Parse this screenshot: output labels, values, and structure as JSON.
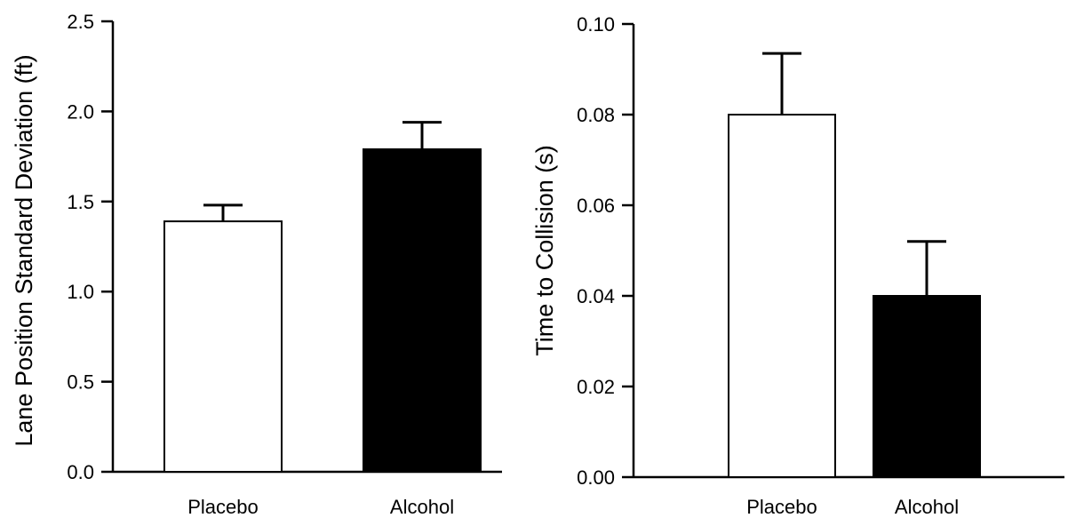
{
  "chart_data": [
    {
      "type": "bar",
      "categories": [
        "Placebo",
        "Alcohol"
      ],
      "values": [
        1.39,
        1.79
      ],
      "errors": [
        0.09,
        0.15
      ],
      "bar_colors": [
        "#ffffff",
        "#000000"
      ],
      "ylabel": "Lane Position Standard Deviation (ft)",
      "ylim": [
        0,
        2.5
      ],
      "yticks": [
        "0.0",
        "0.5",
        "1.0",
        "1.5",
        "2.0",
        "2.5"
      ],
      "grid": false
    },
    {
      "type": "bar",
      "categories": [
        "Placebo",
        "Alcohol"
      ],
      "values": [
        0.08,
        0.04
      ],
      "errors": [
        0.0135,
        0.012
      ],
      "bar_colors": [
        "#ffffff",
        "#000000"
      ],
      "ylabel": "Time to Collision (s)",
      "ylim": [
        0,
        0.1
      ],
      "yticks": [
        "0.00",
        "0.02",
        "0.04",
        "0.06",
        "0.08",
        "0.10"
      ],
      "grid": false
    }
  ]
}
